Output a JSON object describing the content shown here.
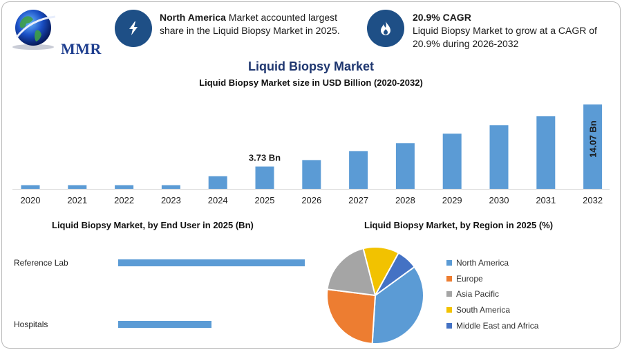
{
  "logo": {
    "text": "MMR"
  },
  "info": [
    {
      "bold": "North America",
      "text": " Market accounted largest share in the Liquid Biopsy Market in 2025.",
      "icon": "lightning-icon"
    },
    {
      "bold": "20.9% CAGR",
      "text": "Liquid Biopsy Market to grow at a CAGR of 20.9% during 2026-2032",
      "icon": "flame-icon"
    }
  ],
  "colors": {
    "bar": "#5b9bd5",
    "icon_bg": "#1e4f86",
    "title": "#1f3770"
  },
  "chart_data": [
    {
      "type": "bar",
      "title": "Liquid Biopsy Market",
      "subtitle": "Liquid Biopsy Market size in USD Billion (2020-2032)",
      "categories": [
        "2020",
        "2021",
        "2022",
        "2023",
        "2024",
        "2025",
        "2026",
        "2027",
        "2028",
        "2029",
        "2030",
        "2031",
        "2032"
      ],
      "values": [
        0.6,
        0.6,
        0.6,
        0.6,
        2.1,
        3.73,
        4.8,
        6.3,
        7.6,
        9.2,
        10.6,
        12.1,
        14.07
      ],
      "labels": {
        "2025": "3.73 Bn",
        "2032": "14.07 Bn"
      },
      "ylim": [
        0,
        15
      ],
      "grid": false
    },
    {
      "type": "bar",
      "orientation": "horizontal",
      "title": "Liquid Biopsy Market, by End User in 2025 (Bn)",
      "categories": [
        "Reference Lab",
        "Hospitals"
      ],
      "values": [
        2.5,
        1.25
      ],
      "xlim": [
        0,
        2.5
      ]
    },
    {
      "type": "pie",
      "title": "Liquid Biopsy Market, by Region in 2025 (%)",
      "categories": [
        "North America",
        "Europe",
        "Asia Pacific",
        "South America",
        "Middle East and Africa"
      ],
      "values": [
        36,
        26,
        19,
        12,
        7
      ],
      "colors": [
        "#5b9bd5",
        "#ed7d31",
        "#a5a5a5",
        "#f2c200",
        "#4472c4"
      ],
      "legend": "right"
    }
  ]
}
